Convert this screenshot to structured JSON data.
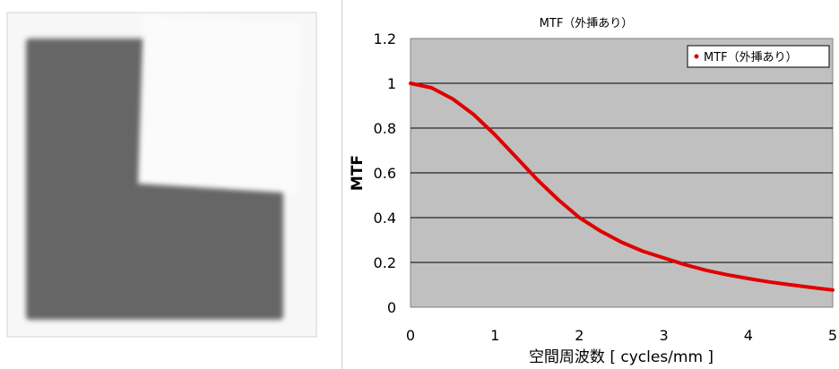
{
  "left_image": {
    "description_colors": {
      "background": "#f7f7f7",
      "dark_square": "#666666",
      "light_square": "#fafafa",
      "border": "#d6d6d6"
    }
  },
  "chart_data": {
    "type": "line",
    "title": "MTF（外挿あり）",
    "xlabel": "空間周波数 [ cycles/mm ]",
    "ylabel": "MTF",
    "xlim": [
      0,
      5
    ],
    "ylim": [
      0,
      1.2
    ],
    "x_ticks": [
      "0",
      "1",
      "2",
      "3",
      "4",
      "5"
    ],
    "y_ticks": [
      "0",
      "0.2",
      "0.4",
      "0.6",
      "0.8",
      "1",
      "1.2"
    ],
    "grid": "horizontal",
    "legend_position": "top-right",
    "plot_background": "#c0c0c0",
    "series": [
      {
        "name": "MTF（外挿あり）",
        "color": "#e00000",
        "x": [
          0,
          0.25,
          0.5,
          0.75,
          1.0,
          1.25,
          1.5,
          1.75,
          2.0,
          2.25,
          2.5,
          2.75,
          3.0,
          3.25,
          3.5,
          3.75,
          4.0,
          4.25,
          4.5,
          4.75,
          5.0
        ],
        "y": [
          1.0,
          0.98,
          0.93,
          0.86,
          0.77,
          0.67,
          0.57,
          0.48,
          0.4,
          0.34,
          0.29,
          0.25,
          0.22,
          0.19,
          0.165,
          0.145,
          0.128,
          0.113,
          0.1,
          0.088,
          0.077
        ]
      }
    ]
  }
}
